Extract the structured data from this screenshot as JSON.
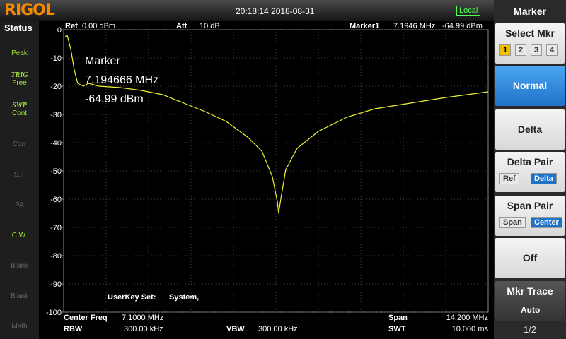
{
  "header": {
    "logo": "RIGOL",
    "datetime": "20:18:14 2018-08-31",
    "mode": "Local"
  },
  "status_panel": {
    "title": "Status",
    "items": [
      {
        "label": "Peak"
      },
      {
        "top": "TRIG",
        "label": "Free"
      },
      {
        "top": "SWP",
        "label": "Cont"
      },
      {
        "label": "Corr"
      },
      {
        "label": "S.T"
      },
      {
        "label": "PA"
      },
      {
        "label": "C.W."
      },
      {
        "label": "Blank"
      },
      {
        "label": "Blank"
      },
      {
        "label": "Math"
      }
    ]
  },
  "measurement": {
    "ref_label": "Ref",
    "ref_value": "0.00 dBm",
    "att_label": "Att",
    "att_value": "10 dB",
    "marker_label": "Marker1",
    "marker_freq": "7.1946 MHz",
    "marker_level": "-64.99 dBm",
    "userkey_label": "UserKey Set:",
    "userkey_value": "System,",
    "center_label": "Center Freq",
    "center_value": "7.1000 MHz",
    "span_label": "Span",
    "span_value": "14.200 MHz",
    "rbw_label": "RBW",
    "rbw_value": "300.00 kHz",
    "vbw_label": "VBW",
    "vbw_value": "300.00 kHz",
    "swt_label": "SWT",
    "swt_value": "10.000 ms"
  },
  "chart_data": {
    "type": "line",
    "annotation": [
      "Marker",
      "7.194666 MHz",
      "-64.99 dBm"
    ],
    "x": [
      0.05,
      0.12,
      0.24,
      0.36,
      0.47,
      0.66,
      0.83,
      1.18,
      1.89,
      2.6,
      3.31,
      4.02,
      4.73,
      5.44,
      6.15,
      6.63,
      6.98,
      7.15,
      7.19,
      7.27,
      7.43,
      7.81,
      8.52,
      9.47,
      10.41,
      11.6,
      12.78,
      14.2
    ],
    "series": [
      {
        "color": "#f2f230",
        "values": [
          -2.5,
          -2,
          -7,
          -14.5,
          -19,
          -20,
          -19,
          -20,
          -20.5,
          -21.5,
          -23,
          -26,
          -29,
          -32.5,
          -38,
          -43,
          -52,
          -61,
          -65,
          -59.5,
          -49.5,
          -42,
          -36,
          -31,
          -28,
          -26,
          -24,
          -22
        ]
      }
    ],
    "xlim": [
      0,
      14.2
    ],
    "ylim": [
      -100,
      0
    ],
    "yticks": [
      0,
      -10,
      -20,
      -30,
      -40,
      -50,
      -60,
      -70,
      -80,
      -90,
      -100
    ],
    "grid": true
  },
  "menu": {
    "title": "Marker",
    "select_label": "Select Mkr",
    "select_options": [
      "1",
      "2",
      "3",
      "4"
    ],
    "normal": "Normal",
    "delta": "Delta",
    "delta_pair": "Delta Pair",
    "delta_pair_options": [
      "Ref",
      "Delta"
    ],
    "span_pair": "Span Pair",
    "span_pair_options": [
      "Span",
      "Center"
    ],
    "off": "Off",
    "mkr_trace": "Mkr Trace",
    "mkr_trace_value": "Auto",
    "page": "1/2"
  }
}
